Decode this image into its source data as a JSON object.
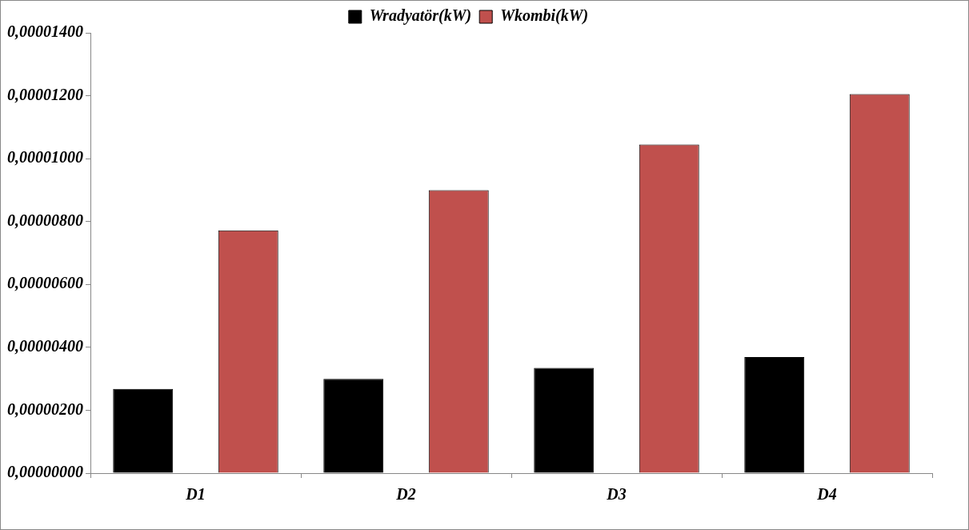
{
  "chart_data": {
    "type": "bar",
    "categories": [
      "D1",
      "D2",
      "D3",
      "D4"
    ],
    "series": [
      {
        "name": "Wradyatör(kW)",
        "color": "#000000",
        "values": [
          2.68e-06,
          3e-06,
          3.35e-06,
          3.69e-06
        ]
      },
      {
        "name": "Wkombi(kW)",
        "color": "#c0504d",
        "values": [
          7.72e-06,
          9e-06,
          1.045e-05,
          1.205e-05
        ]
      }
    ],
    "ylim": [
      0,
      1.4e-05
    ],
    "yticks": [
      {
        "value": 0,
        "label": "0,00000000"
      },
      {
        "value": 2e-06,
        "label": "0,00000200"
      },
      {
        "value": 4e-06,
        "label": "0,00000400"
      },
      {
        "value": 6e-06,
        "label": "0,00000600"
      },
      {
        "value": 8e-06,
        "label": "0,00000800"
      },
      {
        "value": 1e-05,
        "label": "0,00001000"
      },
      {
        "value": 1.2e-05,
        "label": "0,00001200"
      },
      {
        "value": 1.4e-05,
        "label": "0,00001400"
      }
    ],
    "grid": false,
    "legend": "top"
  }
}
